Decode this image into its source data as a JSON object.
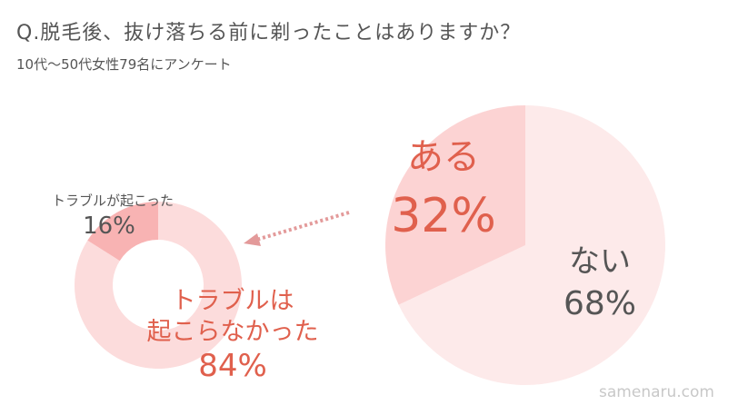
{
  "title": "Q.脱毛後、抜け落ちる前に剃ったことはありますか？",
  "subtitle": "10代〜50代女性79名にアンケート",
  "credit": "samenaru.com",
  "colors": {
    "pie_main": "#fdeaea",
    "pie_highlight": "#fcd3d3",
    "donut_main": "#fcdcdc",
    "donut_highlight": "#f8b3b3",
    "accent_text": "#e0604d",
    "dark_text": "#555555",
    "arrow": "#e39a9a"
  },
  "chart_data": [
    {
      "type": "pie",
      "slices": [
        {
          "label": "ある",
          "value": 32
        },
        {
          "label": "ない",
          "value": 68
        }
      ]
    },
    {
      "type": "pie",
      "donut": true,
      "slices": [
        {
          "label": "トラブルが起こった",
          "value": 16
        },
        {
          "label": "トラブルは起こらなかった",
          "value": 84
        }
      ]
    }
  ]
}
